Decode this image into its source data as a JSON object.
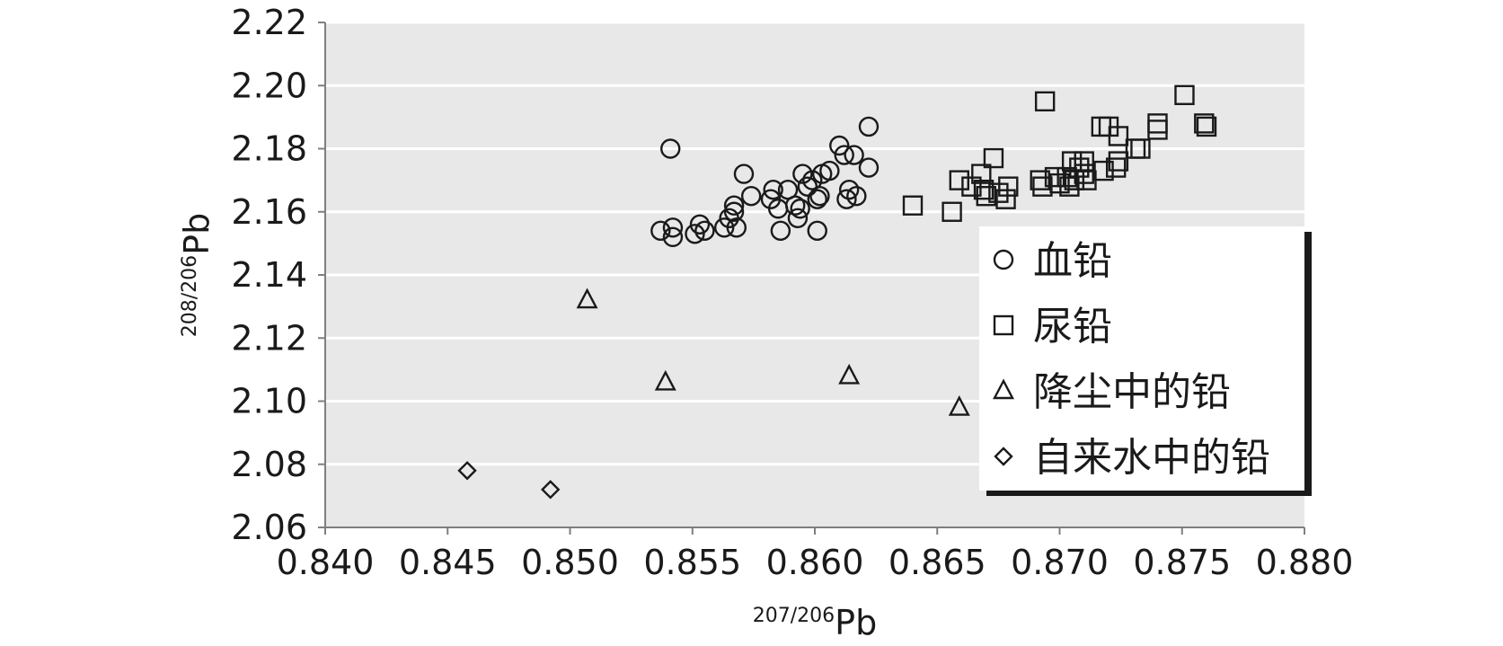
{
  "chart_data": {
    "type": "scatter",
    "xlabel_sup": "207/206",
    "xlabel": "Pb",
    "ylabel_sup": "208/206",
    "ylabel": "Pb",
    "xlim": [
      0.84,
      0.88
    ],
    "ylim": [
      2.06,
      2.22
    ],
    "xticks": [
      "0.840",
      "0.845",
      "0.850",
      "0.855",
      "0.860",
      "0.865",
      "0.870",
      "0.875",
      "0.880"
    ],
    "yticks": [
      "2.06",
      "2.08",
      "2.10",
      "2.12",
      "2.14",
      "2.16",
      "2.18",
      "2.20",
      "2.22"
    ],
    "grid": "horizontal",
    "plot_background": "#e8e8e8",
    "legend_position": "right",
    "series": [
      {
        "name": "血铅",
        "marker": "circle",
        "points": [
          [
            0.8541,
            2.18
          ],
          [
            0.8537,
            2.154
          ],
          [
            0.8542,
            2.152
          ],
          [
            0.8542,
            2.155
          ],
          [
            0.8551,
            2.153
          ],
          [
            0.8553,
            2.156
          ],
          [
            0.8555,
            2.154
          ],
          [
            0.8563,
            2.155
          ],
          [
            0.8565,
            2.158
          ],
          [
            0.8567,
            2.16
          ],
          [
            0.8567,
            2.162
          ],
          [
            0.8568,
            2.155
          ],
          [
            0.8571,
            2.172
          ],
          [
            0.8574,
            2.165
          ],
          [
            0.8582,
            2.164
          ],
          [
            0.8583,
            2.167
          ],
          [
            0.8585,
            2.161
          ],
          [
            0.8586,
            2.154
          ],
          [
            0.8589,
            2.167
          ],
          [
            0.8592,
            2.162
          ],
          [
            0.8593,
            2.158
          ],
          [
            0.8594,
            2.161
          ],
          [
            0.8595,
            2.172
          ],
          [
            0.8597,
            2.168
          ],
          [
            0.8599,
            2.17
          ],
          [
            0.8601,
            2.164
          ],
          [
            0.8601,
            2.154
          ],
          [
            0.8602,
            2.165
          ],
          [
            0.8603,
            2.172
          ],
          [
            0.8606,
            2.173
          ],
          [
            0.861,
            2.181
          ],
          [
            0.8612,
            2.178
          ],
          [
            0.8613,
            2.164
          ],
          [
            0.8614,
            2.167
          ],
          [
            0.8616,
            2.178
          ],
          [
            0.8617,
            2.165
          ],
          [
            0.8622,
            2.187
          ],
          [
            0.8622,
            2.174
          ]
        ]
      },
      {
        "name": "尿铅",
        "marker": "square",
        "points": [
          [
            0.864,
            2.162
          ],
          [
            0.8656,
            2.16
          ],
          [
            0.8659,
            2.17
          ],
          [
            0.8664,
            2.168
          ],
          [
            0.8668,
            2.172
          ],
          [
            0.8669,
            2.167
          ],
          [
            0.867,
            2.165
          ],
          [
            0.8673,
            2.177
          ],
          [
            0.8675,
            2.166
          ],
          [
            0.8678,
            2.164
          ],
          [
            0.8679,
            2.168
          ],
          [
            0.8692,
            2.17
          ],
          [
            0.8693,
            2.168
          ],
          [
            0.8694,
            2.195
          ],
          [
            0.8698,
            2.171
          ],
          [
            0.87,
            2.169
          ],
          [
            0.8703,
            2.171
          ],
          [
            0.8704,
            2.168
          ],
          [
            0.8705,
            2.176
          ],
          [
            0.8706,
            2.17
          ],
          [
            0.8708,
            2.174
          ],
          [
            0.871,
            2.172
          ],
          [
            0.871,
            2.176
          ],
          [
            0.8711,
            2.17
          ],
          [
            0.8717,
            2.187
          ],
          [
            0.8718,
            2.173
          ],
          [
            0.872,
            2.187
          ],
          [
            0.8723,
            2.174
          ],
          [
            0.8724,
            2.184
          ],
          [
            0.8724,
            2.176
          ],
          [
            0.8731,
            2.18
          ],
          [
            0.8733,
            2.18
          ],
          [
            0.874,
            2.186
          ],
          [
            0.874,
            2.188
          ],
          [
            0.8751,
            2.197
          ],
          [
            0.8759,
            2.188
          ],
          [
            0.876,
            2.187
          ]
        ]
      },
      {
        "name": "降尘中的铅",
        "marker": "triangle",
        "points": [
          [
            0.8507,
            2.132
          ],
          [
            0.8539,
            2.106
          ],
          [
            0.8614,
            2.108
          ],
          [
            0.8659,
            2.098
          ]
        ]
      },
      {
        "name": "自来水中的铅",
        "marker": "diamond",
        "points": [
          [
            0.8458,
            2.078
          ],
          [
            0.8492,
            2.072
          ]
        ]
      }
    ]
  }
}
